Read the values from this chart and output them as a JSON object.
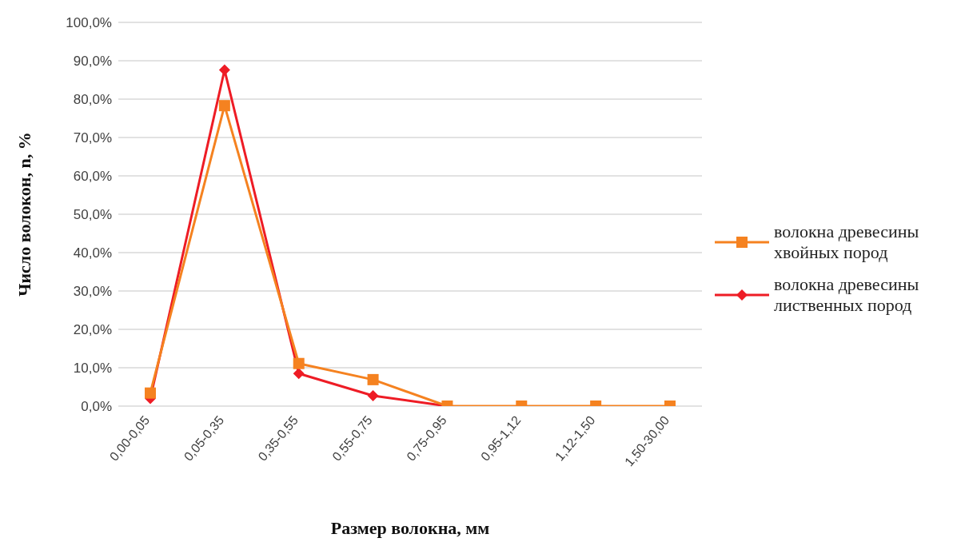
{
  "chart_data": {
    "type": "line",
    "xlabel": "Размер волокна, мм",
    "ylabel": "Число волокон, n, %",
    "categories": [
      "0,00-0,05",
      "0,05-0,35",
      "0,35-0,55",
      "0,55-0,75",
      "0,75-0,95",
      "0,95-1,12",
      "1,12-1,50",
      "1,50-30,00"
    ],
    "series": [
      {
        "name": "волокна древесины хвойных пород",
        "color": "#f58220",
        "marker": "square",
        "values": [
          3.4,
          78.3,
          11.1,
          6.9,
          0,
          0,
          0,
          0
        ]
      },
      {
        "name": "волокна древесины лиственных пород",
        "color": "#ee1c25",
        "marker": "diamond",
        "values": [
          2.0,
          87.6,
          8.5,
          2.7,
          0,
          null,
          null,
          null
        ]
      }
    ],
    "ylim": [
      0,
      100
    ],
    "yticks": [
      {
        "value": 0,
        "label": "0,0%"
      },
      {
        "value": 10,
        "label": "10,0%"
      },
      {
        "value": 20,
        "label": "20,0%"
      },
      {
        "value": 30,
        "label": "30,0%"
      },
      {
        "value": 40,
        "label": "40,0%"
      },
      {
        "value": 50,
        "label": "50,0%"
      },
      {
        "value": 60,
        "label": "60,0%"
      },
      {
        "value": 70,
        "label": "70,0%"
      },
      {
        "value": 80,
        "label": "80,0%"
      },
      {
        "value": 90,
        "label": "90,0%"
      },
      {
        "value": 100,
        "label": "100,0%"
      }
    ],
    "grid": "y",
    "legend": "right"
  }
}
